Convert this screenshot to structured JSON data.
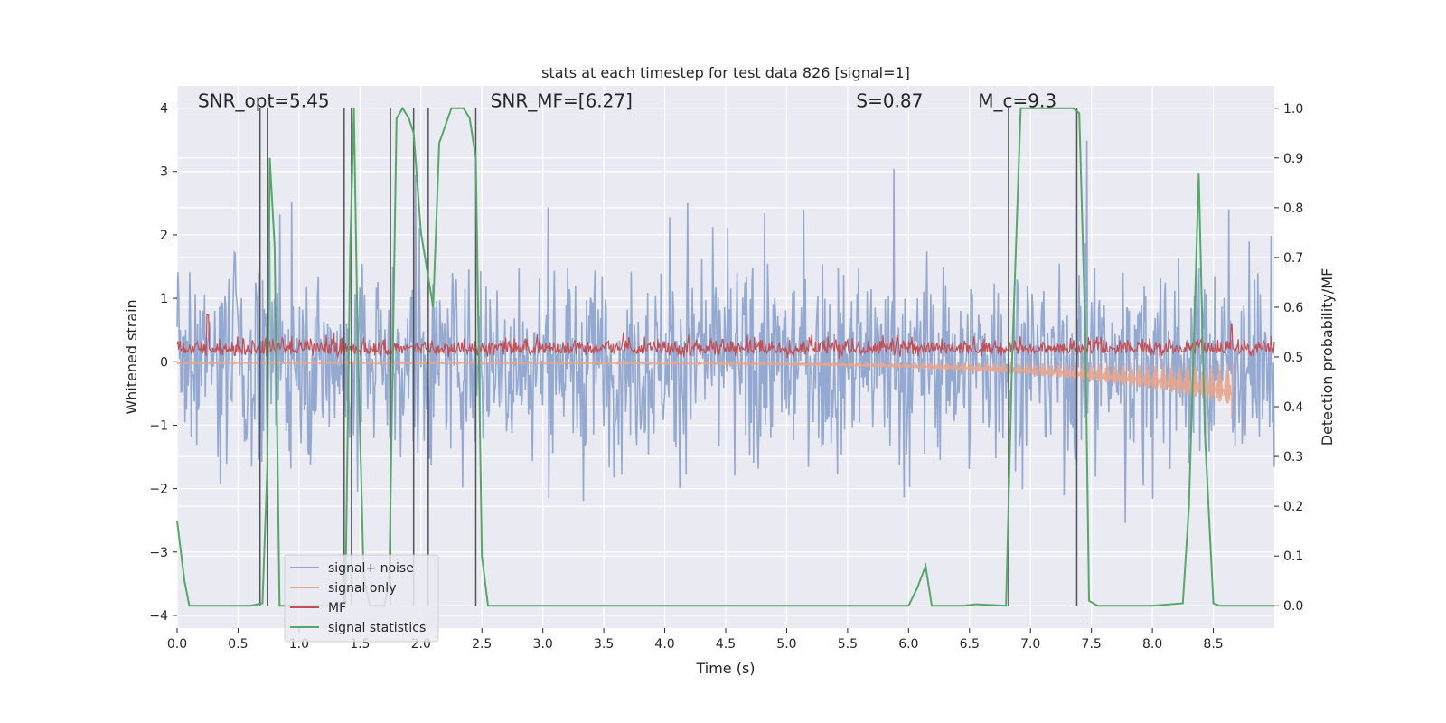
{
  "chart_data": {
    "type": "line",
    "title": "stats at each timestep for test data 826 [signal=1]",
    "xlabel": "Time (s)",
    "ylabel": "Whitened strain",
    "ylabel_right": "Detection probability/MF",
    "xlim": [
      0.0,
      9.0
    ],
    "ylim": [
      -4.2,
      4.35
    ],
    "ylim_right": [
      -0.045,
      1.045
    ],
    "xticks": [
      "0.0",
      "0.5",
      "1.0",
      "1.5",
      "2.0",
      "2.5",
      "3.0",
      "3.5",
      "4.0",
      "4.5",
      "5.0",
      "5.5",
      "6.0",
      "6.5",
      "7.0",
      "7.5",
      "8.0",
      "8.5"
    ],
    "yticks": [
      "4",
      "3",
      "2",
      "1",
      "0",
      "−1",
      "−2",
      "−3",
      "−4"
    ],
    "yticks_right": [
      "1.0",
      "0.9",
      "0.8",
      "0.7",
      "0.6",
      "0.5",
      "0.4",
      "0.3",
      "0.2",
      "0.1",
      "0.0"
    ],
    "grid": true,
    "legend_position": "lower-left",
    "annotations": [
      {
        "id": "snr-opt",
        "text": "SNR_opt=5.45",
        "at": [
          0.2,
          4.0
        ]
      },
      {
        "id": "snr-mf",
        "text": "SNR_MF=[6.27]",
        "at": [
          2.6,
          4.0
        ]
      },
      {
        "id": "spin",
        "text": "S=0.87",
        "at": [
          5.6,
          4.0
        ]
      },
      {
        "id": "chirp-mass",
        "text": "M_c=9.3",
        "at": [
          6.6,
          4.0
        ]
      }
    ],
    "series": [
      {
        "name": "signal+ noise",
        "color": "#8fa5cf",
        "axis": "left",
        "kind": "noise band, approx. range -3.7 to 4.0"
      },
      {
        "name": "signal only",
        "color": "#e8a58c",
        "axis": "left",
        "kind": "chirp growing toward -0.9 near t=8.65"
      },
      {
        "name": "MF",
        "color": "#c44e52",
        "axis": "left",
        "kind": "noisy around 0.2, spike to 0.6 near t=8.65"
      },
      {
        "name": "signal statistics",
        "color": "#55a868",
        "axis": "right",
        "x": [
          0.0,
          0.06,
          0.1,
          0.15,
          0.6,
          0.7,
          0.74,
          0.76,
          0.8,
          0.84,
          1.3,
          1.38,
          1.42,
          1.45,
          1.48,
          1.53,
          1.58,
          1.64,
          1.7,
          1.74,
          1.8,
          1.85,
          1.9,
          1.94,
          2.0,
          2.1,
          2.15,
          2.25,
          2.35,
          2.4,
          2.45,
          2.5,
          2.55,
          2.6,
          6.0,
          6.07,
          6.14,
          6.19,
          6.45,
          6.55,
          6.8,
          6.85,
          6.92,
          7.0,
          7.35,
          7.4,
          7.45,
          7.48,
          7.55,
          8.0,
          8.25,
          8.3,
          8.38,
          8.43,
          8.5,
          8.55,
          9.0
        ],
        "y": [
          0.17,
          0.05,
          0.0,
          0.0,
          0.0,
          0.005,
          0.28,
          0.9,
          0.72,
          0.0,
          0.0,
          0.005,
          0.72,
          1.0,
          0.55,
          0.06,
          0.0,
          0.0,
          0.0,
          0.05,
          0.98,
          1.0,
          0.98,
          0.95,
          0.75,
          0.6,
          0.93,
          1.0,
          1.0,
          0.98,
          0.9,
          0.1,
          0.0,
          0.0,
          0.0,
          0.035,
          0.08,
          0.0,
          0.0,
          0.003,
          0.0,
          0.5,
          1.0,
          1.0,
          1.0,
          0.99,
          0.55,
          0.01,
          0.0,
          0.0,
          0.005,
          0.2,
          0.87,
          0.35,
          0.005,
          0.0,
          0.0
        ]
      },
      {
        "name": "",
        "color": "#555555",
        "axis": "right",
        "kind": "vertical event markers",
        "x": [
          0.68,
          0.74,
          1.37,
          1.43,
          1.75,
          1.94,
          2.06,
          2.45,
          6.82,
          7.38
        ]
      }
    ]
  },
  "legend": [
    {
      "label": "signal+ noise",
      "color": "#8fa5cf"
    },
    {
      "label": "signal only",
      "color": "#e8a58c"
    },
    {
      "label": "MF",
      "color": "#c44e52"
    },
    {
      "label": "signal statistics",
      "color": "#55a868"
    }
  ]
}
